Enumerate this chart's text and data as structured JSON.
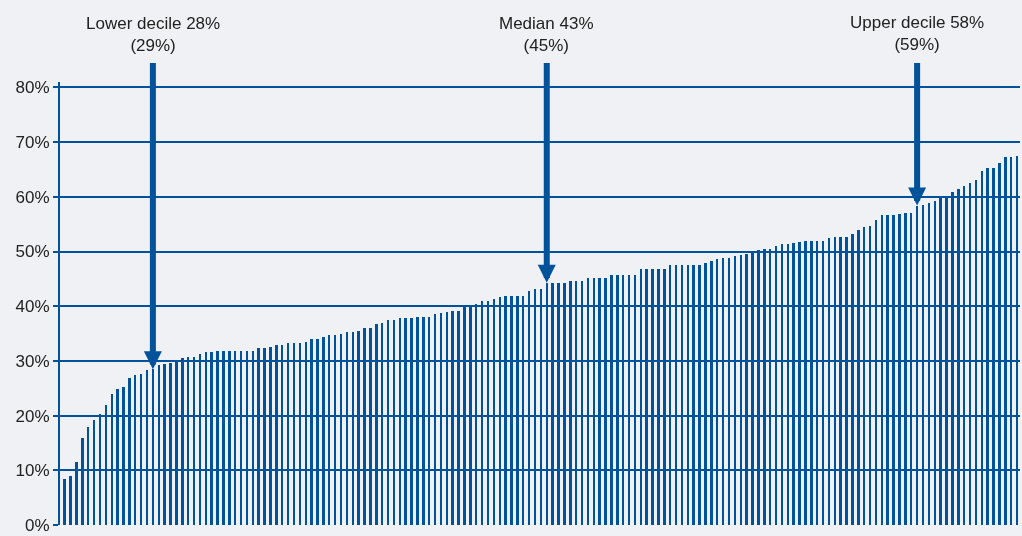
{
  "chart_data": {
    "type": "bar",
    "categories": [
      null,
      null,
      null,
      null,
      null,
      null,
      null,
      null,
      null,
      null,
      null,
      null,
      null,
      null,
      null,
      null,
      null,
      null,
      null,
      null,
      null,
      null,
      null,
      null,
      null,
      null,
      null,
      null,
      null,
      null,
      null,
      null,
      null,
      null,
      null,
      null,
      null,
      null,
      null,
      null,
      null,
      null,
      null,
      null,
      null,
      null,
      null,
      null,
      null,
      null,
      null,
      null,
      null,
      null,
      null,
      null,
      null,
      null,
      null,
      null,
      null,
      null,
      null,
      null,
      null,
      null,
      null,
      null,
      null,
      null,
      null,
      null,
      null,
      null,
      null,
      null,
      null,
      null,
      null,
      null,
      null,
      null,
      null,
      null,
      null,
      null,
      null,
      null,
      null,
      null,
      null,
      null,
      null,
      null,
      null,
      null,
      null,
      null,
      null,
      null,
      null,
      null,
      null,
      null,
      null,
      null,
      null,
      null,
      null,
      null,
      null,
      null,
      null,
      null,
      null,
      null,
      null,
      null,
      null,
      null,
      null,
      null,
      null,
      null,
      null,
      null,
      null,
      null,
      null,
      null,
      null,
      null,
      null,
      null,
      null,
      null,
      null,
      null,
      null,
      null,
      null,
      null,
      null,
      null,
      null,
      null,
      null,
      null,
      null,
      null,
      null,
      null,
      null,
      null,
      null,
      null,
      null,
      null,
      null,
      null,
      null,
      null,
      null
    ],
    "values": [
      8.4,
      8.9,
      11.5,
      15.9,
      18,
      19.2,
      20.3,
      21.9,
      23.9,
      24.8,
      25.2,
      26.8,
      27.4,
      27.6,
      28.3,
      28.5,
      29.2,
      29.4,
      29.7,
      29.9,
      30.5,
      30.7,
      30.7,
      31.2,
      31.6,
      31.6,
      31.8,
      31.9,
      31.9,
      31.9,
      31.9,
      31.9,
      31.9,
      32.3,
      32.3,
      32.6,
      33,
      33,
      33.2,
      33.2,
      33.2,
      33.4,
      34.1,
      34.1,
      34.3,
      34.7,
      34.7,
      35,
      35.2,
      35.2,
      35.4,
      36.1,
      36.1,
      36.7,
      37,
      37.4,
      37.4,
      37.8,
      37.8,
      37.8,
      38.1,
      38.1,
      38.1,
      38.5,
      38.7,
      38.9,
      39.2,
      39.2,
      39.8,
      40,
      40.5,
      40.9,
      41,
      41.4,
      41.6,
      41.8,
      41.8,
      41.8,
      41.8,
      42.7,
      43.1,
      43.1,
      44.3,
      44.3,
      44.3,
      44.3,
      44.7,
      44.7,
      44.7,
      45.1,
      45.1,
      45.1,
      45.1,
      45.8,
      45.8,
      45.8,
      45.8,
      45.8,
      46.9,
      46.9,
      46.9,
      46.9,
      46.9,
      47.6,
      47.6,
      47.6,
      47.6,
      47.6,
      47.6,
      47.9,
      48.2,
      48.7,
      48.9,
      48.9,
      49.1,
      49.3,
      49.6,
      49.8,
      50.2,
      50.4,
      50.4,
      51.1,
      51.3,
      51.3,
      51.5,
      51.8,
      52,
      52,
      52,
      52,
      52.4,
      52.6,
      52.6,
      52.7,
      53.3,
      54,
      54.4,
      54.6,
      55.7,
      56.6,
      56.6,
      56.6,
      56.8,
      57.1,
      57.1,
      58.4,
      58.6,
      58.8,
      59.3,
      59.9,
      59.9,
      60.8,
      61.5,
      62,
      62.6,
      63.1,
      64.8,
      65.3,
      65.3,
      66.1,
      67.2,
      67.2,
      67.5
    ],
    "color": "#00529b",
    "ylim": [
      0,
      81
    ],
    "yticks": [
      {
        "value": 0,
        "label": "0%"
      },
      {
        "value": 10,
        "label": "10%"
      },
      {
        "value": 20,
        "label": "20%"
      },
      {
        "value": 30,
        "label": "30%"
      },
      {
        "value": 40,
        "label": "40%"
      },
      {
        "value": 50,
        "label": "50%"
      },
      {
        "value": 60,
        "label": "60%"
      },
      {
        "value": 70,
        "label": "70%"
      },
      {
        "value": 80,
        "label": "80%"
      }
    ],
    "grid": "y",
    "legend": false,
    "annotations": [
      {
        "text": "Lower decile 28%\n(29%)",
        "y": 28.5
      },
      {
        "text": "Median 43%\n(45%)",
        "y": 44.3
      },
      {
        "text": "Upper decile 58%\n(59%)",
        "y": 58.4
      }
    ]
  }
}
